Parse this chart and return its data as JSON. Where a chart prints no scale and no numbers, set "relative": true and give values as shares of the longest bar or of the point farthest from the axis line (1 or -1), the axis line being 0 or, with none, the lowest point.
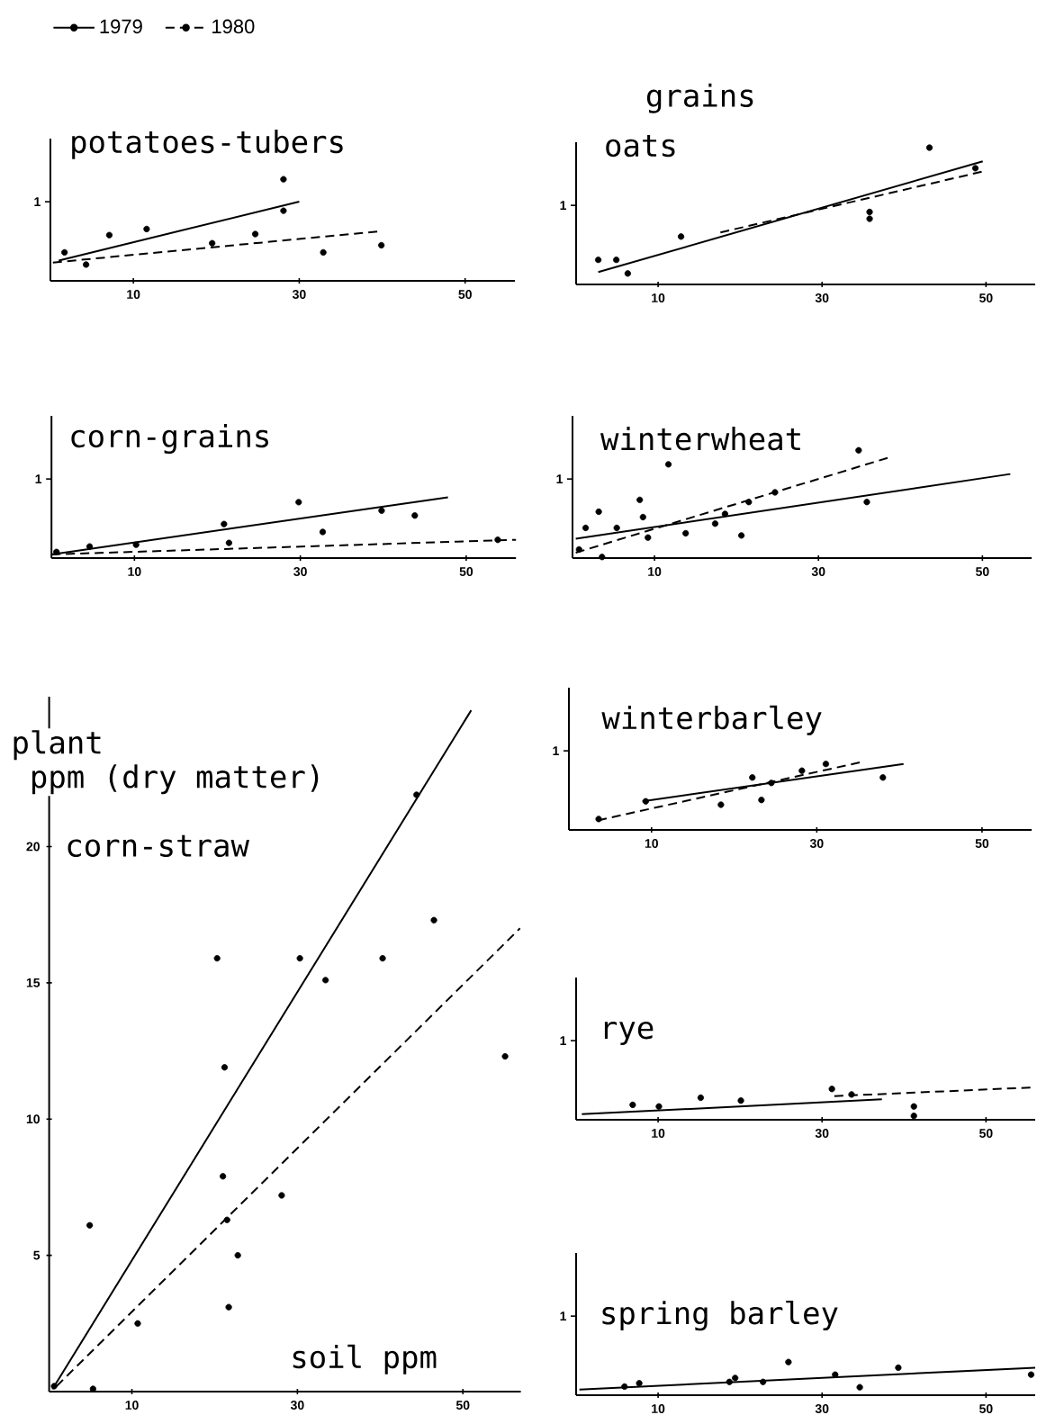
{
  "chart_data": [
    {
      "type": "scatter",
      "title": "potatoes-tubers",
      "marker": "circle",
      "relative": true,
      "annotations": [
        "1"
      ],
      "xlim": [
        0,
        56
      ],
      "xticks": [
        10,
        30,
        50
      ],
      "legend": "top left",
      "series": [
        {
          "color": "#000000",
          "x": [
            1.7,
            4.3,
            7.1,
            11.6,
            19.5,
            24.7,
            28.1,
            28.1,
            32.9,
            39.9
          ],
          "values": [
            0.28,
            0.16,
            0.45,
            0.51,
            0.37,
            0.46,
            1,
            0.69,
            0.28,
            0.35
          ]
        },
        {
          "name": "1979",
          "type": "line",
          "marker": "none",
          "line_style": "solid",
          "color": "#000000",
          "x": [
            1,
            30
          ],
          "values": [
            0.2,
            0.78
          ]
        },
        {
          "name": "1980",
          "type": "line",
          "marker": "none",
          "line_style": "dashed",
          "color": "#000000",
          "x": [
            0.3,
            40
          ],
          "values": [
            0.18,
            0.49
          ]
        }
      ]
    },
    {
      "type": "scatter",
      "title": "oats",
      "marker": "circle",
      "relative": true,
      "annotations": [
        "1",
        "grains"
      ],
      "xlim": [
        0,
        56
      ],
      "xticks": [
        10,
        30,
        50
      ],
      "series": [
        {
          "color": "#000000",
          "x": [
            2.7,
            4.9,
            6.3,
            12.8,
            35.8,
            35.8,
            43.1,
            48.7
          ],
          "values": [
            0.18,
            0.18,
            0.08,
            0.35,
            0.53,
            0.48,
            1,
            0.85
          ]
        },
        {
          "type": "line",
          "marker": "none",
          "line_style": "solid",
          "color": "#000000",
          "x": [
            2.7,
            49.6
          ],
          "values": [
            0.09,
            0.9
          ]
        },
        {
          "type": "line",
          "marker": "none",
          "line_style": "dashed",
          "color": "#000000",
          "x": [
            17.6,
            49.9
          ],
          "values": [
            0.38,
            0.83
          ]
        }
      ]
    },
    {
      "type": "scatter",
      "title": "corn-grains",
      "marker": "circle",
      "relative": true,
      "annotations": [
        "1"
      ],
      "xlim": [
        0,
        56
      ],
      "xticks": [
        10,
        30,
        50
      ],
      "series": [
        {
          "color": "#000000",
          "x": [
            0.6,
            4.6,
            10.2,
            20.8,
            21.4,
            29.8,
            32.7,
            39.8,
            43.8,
            53.8
          ],
          "values": [
            0.1,
            0.19,
            0.22,
            0.56,
            0.25,
            0.92,
            0.43,
            0.78,
            0.7,
            0.3
          ]
        },
        {
          "type": "line",
          "marker": "none",
          "line_style": "solid",
          "color": "#000000",
          "x": [
            0,
            47.8
          ],
          "values": [
            0.06,
            1
          ]
        },
        {
          "type": "line",
          "marker": "none",
          "line_style": "dashed",
          "color": "#000000",
          "x": [
            0,
            56
          ],
          "values": [
            0.06,
            0.3
          ]
        }
      ]
    },
    {
      "type": "scatter",
      "title": "winterwheat",
      "marker": "circle",
      "relative": true,
      "annotations": [
        "1"
      ],
      "xlim": [
        0,
        56
      ],
      "xticks": [
        10,
        30,
        50
      ],
      "series": [
        {
          "color": "#000000",
          "x": [
            0.8,
            3.2,
            3.6,
            1.6,
            5.4,
            8.2,
            8.6,
            9.2,
            11.7,
            13.8,
            17.4,
            18.6,
            20.6,
            21.5,
            24.7,
            34.9,
            35.9
          ],
          "values": [
            0.08,
            0.43,
            0.01,
            0.28,
            0.28,
            0.54,
            0.38,
            0.19,
            0.87,
            0.23,
            0.32,
            0.41,
            0.21,
            0.52,
            0.61,
            1,
            0.52
          ]
        },
        {
          "type": "line",
          "marker": "none",
          "line_style": "solid",
          "color": "#000000",
          "x": [
            0.4,
            53.4
          ],
          "values": [
            0.18,
            0.78
          ]
        },
        {
          "type": "line",
          "marker": "none",
          "line_style": "dashed",
          "color": "#000000",
          "x": [
            0.4,
            38.9
          ],
          "values": [
            0.05,
            0.94
          ]
        }
      ]
    },
    {
      "type": "scatter",
      "title": "corn-straw",
      "marker": "circle",
      "xlabel": "soil ppm",
      "ylabel": "plant ppm (dry matter)",
      "xlim": [
        0,
        57
      ],
      "ylim": [
        0,
        25.5
      ],
      "xticks": [
        10,
        30,
        50
      ],
      "yticks": [
        5,
        10,
        15,
        20
      ],
      "series": [
        {
          "color": "#000000",
          "x": [
            0.6,
            5.3,
            4.9,
            10.7,
            20.3,
            21.2,
            21.0,
            21.5,
            21.7,
            22.8,
            28.1,
            30.3,
            33.4,
            40.3,
            46.5,
            44.4,
            55.1
          ],
          "values": [
            0.2,
            0.1,
            6.1,
            2.5,
            15.9,
            11.9,
            7.9,
            6.3,
            3.1,
            5.0,
            7.2,
            15.9,
            15.1,
            15.9,
            17.3,
            21.9,
            12.3
          ]
        },
        {
          "type": "line",
          "marker": "none",
          "line_style": "solid",
          "color": "#000000",
          "x": [
            0.4,
            51
          ],
          "values": [
            0.09,
            25.0
          ]
        },
        {
          "type": "line",
          "marker": "none",
          "line_style": "dashed",
          "color": "#000000",
          "x": [
            0.9,
            56.9
          ],
          "values": [
            0.2,
            17.0
          ]
        }
      ]
    },
    {
      "type": "scatter",
      "title": "winterbarley",
      "marker": "circle",
      "relative": true,
      "annotations": [
        "1"
      ],
      "xlim": [
        0,
        56
      ],
      "xticks": [
        10,
        30,
        50
      ],
      "series": [
        {
          "color": "#000000",
          "x": [
            3.6,
            9.3,
            18.4,
            22.2,
            23.3,
            24.5,
            28.2,
            31.1,
            38.0
          ],
          "values": [
            0.16,
            0.42,
            0.37,
            0.77,
            0.44,
            0.69,
            0.87,
            0.97,
            0.77
          ]
        },
        {
          "type": "line",
          "marker": "none",
          "line_style": "solid",
          "color": "#000000",
          "x": [
            8.9,
            40.5
          ],
          "values": [
            0.42,
            0.97
          ]
        },
        {
          "type": "line",
          "marker": "none",
          "line_style": "dashed",
          "color": "#000000",
          "x": [
            3.5,
            35.5
          ],
          "values": [
            0.14,
            1
          ]
        }
      ]
    },
    {
      "type": "scatter",
      "title": "rye",
      "marker": "circle",
      "relative": true,
      "annotations": [
        "1"
      ],
      "xlim": [
        0,
        56
      ],
      "xticks": [
        10,
        30,
        50
      ],
      "series": [
        {
          "color": "#000000",
          "x": [
            6.9,
            10.1,
            15.2,
            20.1,
            31.2,
            33.6,
            41.2,
            41.2
          ],
          "values": [
            0.46,
            0.41,
            0.68,
            0.59,
            0.95,
            0.78,
            0.41,
            0.12
          ]
        },
        {
          "type": "line",
          "marker": "none",
          "line_style": "solid",
          "color": "#000000",
          "x": [
            0.7,
            37.3
          ],
          "values": [
            0.17,
            0.63
          ]
        },
        {
          "type": "line",
          "marker": "none",
          "line_style": "dashed",
          "color": "#000000",
          "x": [
            31.5,
            56
          ],
          "values": [
            0.73,
            1
          ]
        }
      ]
    },
    {
      "type": "scatter",
      "title": "spring barley",
      "marker": "circle",
      "relative": true,
      "annotations": [
        "1"
      ],
      "xlim": [
        0,
        56
      ],
      "xticks": [
        10,
        30,
        50
      ],
      "series": [
        {
          "color": "#000000",
          "x": [
            5.9,
            7.7,
            18.7,
            19.4,
            22.8,
            25.9,
            31.6,
            34.6,
            39.3,
            55.5
          ],
          "values": [
            0.26,
            0.36,
            0.4,
            0.52,
            0.4,
            1,
            0.62,
            0.24,
            0.83,
            0.62
          ]
        },
        {
          "type": "line",
          "marker": "none",
          "line_style": "solid",
          "color": "#000000",
          "x": [
            0.4,
            56
          ],
          "values": [
            0.17,
            0.83
          ]
        }
      ]
    }
  ]
}
